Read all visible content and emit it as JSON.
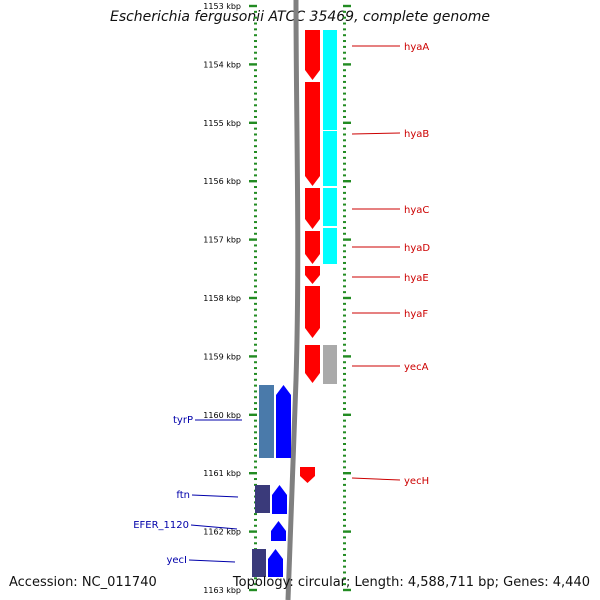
{
  "title": "Escherichia fergusonii ATCC 35469, complete genome",
  "accession": "Accession: NC_011740",
  "summary": "Topology: circular; Length: 4,588,711 bp; Genes: 4,440",
  "colors": {
    "forward_gene": "#ff0000",
    "reverse_gene": "#0000ff",
    "reverse_gene_dark": "#3a3a7a",
    "forward_label": "#cc0000",
    "reverse_label": "#0000aa",
    "cyan_feature": "#00ffff",
    "gray_feature": "#aaaaaa",
    "ruler_tick": "#228b22",
    "backbone": "#808080"
  },
  "ruler": {
    "unit": "kbp",
    "ticks": [
      "1153 kbp",
      "1154 kbp",
      "1155 kbp",
      "1156 kbp",
      "1157 kbp",
      "1158 kbp",
      "1159 kbp",
      "1160 kbp",
      "1161 kbp",
      "1162 kbp",
      "1163 kbp"
    ]
  },
  "forward_genes": [
    "hyaA",
    "hyaB",
    "hyaC",
    "hyaD",
    "hyaE",
    "hyaF",
    "yecA",
    "yecH"
  ],
  "reverse_genes": [
    "tyrP",
    "ftn",
    "EFER_1120",
    "yecI"
  ]
}
